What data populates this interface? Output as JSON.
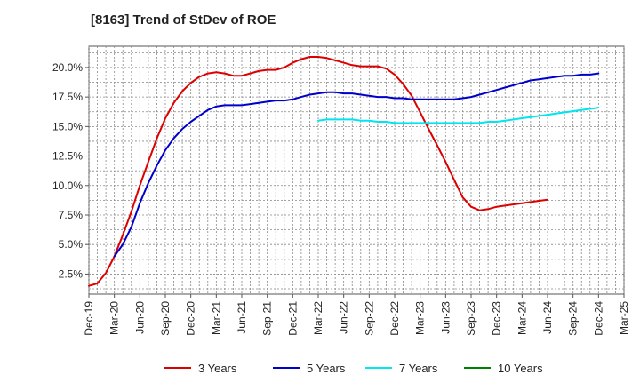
{
  "chart_data": {
    "type": "line",
    "title": "[8163]  Trend of StDev of ROE",
    "xlabel": "",
    "ylabel": "",
    "x_ticks": [
      "Dec-19",
      "Mar-20",
      "Jun-20",
      "Sep-20",
      "Dec-20",
      "Mar-21",
      "Jun-21",
      "Sep-21",
      "Dec-21",
      "Mar-22",
      "Jun-22",
      "Sep-22",
      "Dec-22",
      "Mar-23",
      "Jun-23",
      "Sep-23",
      "Dec-23",
      "Mar-24",
      "Jun-24",
      "Sep-24",
      "Dec-24",
      "Mar-25"
    ],
    "y_ticks": [
      "2.5%",
      "5.0%",
      "7.5%",
      "10.0%",
      "12.5%",
      "15.0%",
      "17.5%",
      "20.0%"
    ],
    "ylim": [
      0.8,
      21.8
    ],
    "grid": true,
    "legend_position": "bottom",
    "series": [
      {
        "name": "3 Years",
        "color": "#dd0000",
        "x": [
          0,
          0.33,
          0.67,
          1,
          1.33,
          1.67,
          2,
          2.33,
          2.67,
          3,
          3.33,
          3.67,
          4,
          4.33,
          4.67,
          5,
          5.33,
          5.67,
          6,
          6.33,
          6.67,
          7,
          7.33,
          7.67,
          8,
          8.33,
          8.67,
          9,
          9.33,
          9.67,
          10,
          10.33,
          10.67,
          11,
          11.33,
          11.67,
          12,
          12.33,
          12.67,
          13,
          13.33,
          13.67,
          14,
          14.33,
          14.67,
          15,
          15.33,
          15.67,
          16,
          16.33,
          16.67,
          17,
          17.33,
          17.67,
          18,
          18.33,
          18.67,
          19,
          19.33,
          19.67,
          20
        ],
        "values": [
          1.5,
          1.7,
          2.6,
          4.0,
          5.8,
          7.8,
          10.0,
          12.0,
          14.0,
          15.7,
          17.0,
          18.0,
          18.7,
          19.2,
          19.5,
          19.6,
          19.5,
          19.3,
          19.3,
          19.5,
          19.7,
          19.8,
          19.8,
          20.0,
          20.4,
          20.7,
          20.9,
          20.9,
          20.8,
          20.6,
          20.4,
          20.2,
          20.1,
          20.1,
          20.1,
          19.9,
          19.4,
          18.6,
          17.6,
          16.2,
          14.8,
          13.4,
          12.0,
          10.5,
          9.0,
          8.2,
          7.9,
          8.0,
          8.2,
          8.3,
          8.4,
          8.5,
          8.6,
          8.7,
          8.8,
          null,
          null,
          null,
          null,
          null,
          null
        ],
        "values_note": ""
      },
      {
        "name": "5 Years",
        "color": "#0000cc",
        "x": [
          1,
          1.33,
          1.67,
          2,
          2.33,
          2.67,
          3,
          3.33,
          3.67,
          4,
          4.33,
          4.67,
          5,
          5.33,
          5.67,
          6,
          6.33,
          6.67,
          7,
          7.33,
          7.67,
          8,
          8.33,
          8.67,
          9,
          9.33,
          9.67,
          10,
          10.33,
          10.67,
          11,
          11.33,
          11.67,
          12,
          12.33,
          12.67,
          13,
          13.33,
          13.67,
          14,
          14.33,
          14.67,
          15,
          15.33,
          15.67,
          16,
          16.33,
          16.67,
          17,
          17.33,
          17.67,
          18,
          18.33,
          18.67,
          19,
          19.33,
          19.67,
          20
        ],
        "values": [
          4.0,
          5.0,
          6.5,
          8.5,
          10.2,
          11.7,
          13.0,
          14.0,
          14.8,
          15.4,
          15.9,
          16.4,
          16.7,
          16.8,
          16.8,
          16.8,
          16.9,
          17.0,
          17.1,
          17.2,
          17.2,
          17.3,
          17.5,
          17.7,
          17.8,
          17.9,
          17.9,
          17.8,
          17.8,
          17.7,
          17.6,
          17.5,
          17.5,
          17.4,
          17.4,
          17.3,
          17.3,
          17.3,
          17.3,
          17.3,
          17.3,
          17.4,
          17.5,
          17.7,
          17.9,
          18.1,
          18.3,
          18.5,
          18.7,
          18.9,
          19.0,
          19.1,
          19.2,
          19.3,
          19.3,
          19.4,
          19.4,
          19.5
        ]
      },
      {
        "name": "7 Years",
        "color": "#00e5ee",
        "x": [
          9,
          9.33,
          9.67,
          10,
          10.33,
          10.67,
          11,
          11.33,
          11.67,
          12,
          12.33,
          12.67,
          13,
          13.33,
          13.67,
          14,
          14.33,
          14.67,
          15,
          15.33,
          15.67,
          16,
          16.33,
          16.67,
          17,
          17.33,
          17.67,
          18,
          18.33,
          18.67,
          19,
          19.33,
          19.67,
          20
        ],
        "values": [
          15.5,
          15.6,
          15.6,
          15.6,
          15.6,
          15.5,
          15.5,
          15.4,
          15.4,
          15.3,
          15.3,
          15.3,
          15.3,
          15.3,
          15.3,
          15.3,
          15.3,
          15.3,
          15.3,
          15.3,
          15.4,
          15.4,
          15.5,
          15.6,
          15.7,
          15.8,
          15.9,
          16.0,
          16.1,
          16.2,
          16.3,
          16.4,
          16.5,
          16.6
        ]
      },
      {
        "name": "10 Years",
        "color": "#008000",
        "x": [],
        "values": []
      }
    ]
  }
}
